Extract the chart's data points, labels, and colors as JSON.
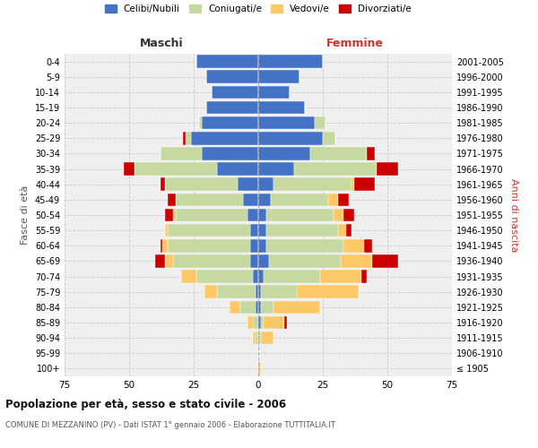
{
  "age_groups": [
    "100+",
    "95-99",
    "90-94",
    "85-89",
    "80-84",
    "75-79",
    "70-74",
    "65-69",
    "60-64",
    "55-59",
    "50-54",
    "45-49",
    "40-44",
    "35-39",
    "30-34",
    "25-29",
    "20-24",
    "15-19",
    "10-14",
    "5-9",
    "0-4"
  ],
  "birth_years": [
    "≤ 1905",
    "1906-1910",
    "1911-1915",
    "1916-1920",
    "1921-1925",
    "1926-1930",
    "1931-1935",
    "1936-1940",
    "1941-1945",
    "1946-1950",
    "1951-1955",
    "1956-1960",
    "1961-1965",
    "1966-1970",
    "1971-1975",
    "1976-1980",
    "1981-1985",
    "1986-1990",
    "1991-1995",
    "1996-2000",
    "2001-2005"
  ],
  "maschi": {
    "celibi": [
      0,
      0,
      0,
      0,
      1,
      1,
      2,
      3,
      3,
      3,
      4,
      6,
      8,
      16,
      22,
      26,
      22,
      20,
      18,
      20,
      24
    ],
    "coniugati": [
      0,
      0,
      1,
      2,
      6,
      15,
      22,
      30,
      32,
      32,
      28,
      26,
      28,
      32,
      16,
      2,
      1,
      0,
      0,
      0,
      0
    ],
    "vedovi": [
      0,
      0,
      1,
      2,
      4,
      5,
      6,
      3,
      2,
      1,
      1,
      0,
      0,
      0,
      0,
      0,
      0,
      0,
      0,
      0,
      0
    ],
    "divorziati": [
      0,
      0,
      0,
      0,
      0,
      0,
      0,
      4,
      1,
      0,
      3,
      3,
      2,
      4,
      0,
      1,
      0,
      0,
      0,
      0,
      0
    ]
  },
  "femmine": {
    "nubili": [
      0,
      0,
      0,
      1,
      1,
      1,
      2,
      4,
      3,
      3,
      3,
      5,
      6,
      14,
      20,
      25,
      22,
      18,
      12,
      16,
      25
    ],
    "coniugate": [
      0,
      0,
      1,
      1,
      5,
      14,
      22,
      28,
      30,
      28,
      26,
      22,
      30,
      32,
      22,
      5,
      4,
      0,
      0,
      0,
      0
    ],
    "vedove": [
      1,
      0,
      5,
      8,
      18,
      24,
      16,
      12,
      8,
      3,
      4,
      4,
      1,
      0,
      0,
      0,
      0,
      0,
      0,
      0,
      0
    ],
    "divorziate": [
      0,
      0,
      0,
      1,
      0,
      0,
      2,
      10,
      3,
      2,
      4,
      4,
      8,
      8,
      3,
      0,
      0,
      0,
      0,
      0,
      0
    ]
  },
  "colors": {
    "celibi": "#4472c4",
    "coniugati": "#c5d9a0",
    "vedovi": "#ffc866",
    "divorziati": "#cc0000"
  },
  "legend_labels": [
    "Celibi/Nubili",
    "Coniugati/e",
    "Vedovi/e",
    "Divorziati/e"
  ],
  "title": "Popolazione per età, sesso e stato civile - 2006",
  "subtitle": "COMUNE DI MEZZANINO (PV) - Dati ISTAT 1° gennaio 2006 - Elaborazione TUTTITALIA.IT",
  "xlabel_left": "Maschi",
  "xlabel_right": "Femmine",
  "ylabel_left": "Fasce di età",
  "ylabel_right": "Anni di nascita",
  "xlim": 75,
  "bg_color": "#ffffff",
  "plot_bg_color": "#efefef",
  "grid_color": "#cccccc",
  "bar_height": 0.85
}
